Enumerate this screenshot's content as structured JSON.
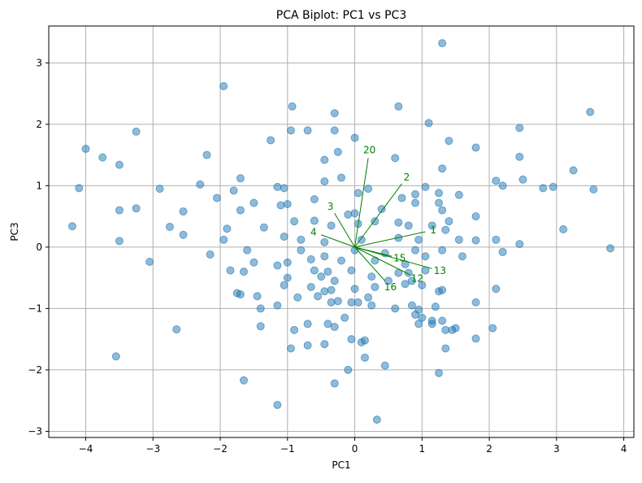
{
  "chart_data": {
    "type": "scatter",
    "title": "PCA Biplot: PC1 vs PC3",
    "xlabel": "PC1",
    "ylabel": "PC3",
    "xlim": [
      -4.55,
      4.15
    ],
    "ylim": [
      -3.1,
      3.6
    ],
    "xticks": [
      -4,
      -3,
      -2,
      -1,
      0,
      1,
      2,
      3,
      4
    ],
    "yticks": [
      -3,
      -2,
      -1,
      0,
      1,
      2,
      3
    ],
    "grid": true,
    "colors": {
      "points": "#1f77b4",
      "loadings": "#008000"
    },
    "points": [
      [
        1.3,
        3.32
      ],
      [
        -1.95,
        2.62
      ],
      [
        -0.93,
        2.29
      ],
      [
        0.65,
        2.29
      ],
      [
        3.5,
        2.2
      ],
      [
        -0.3,
        2.18
      ],
      [
        1.1,
        2.02
      ],
      [
        -0.95,
        1.9
      ],
      [
        -0.3,
        1.9
      ],
      [
        -0.7,
        1.9
      ],
      [
        -3.25,
        1.88
      ],
      [
        2.45,
        1.94
      ],
      [
        0.0,
        1.78
      ],
      [
        -1.25,
        1.74
      ],
      [
        1.4,
        1.73
      ],
      [
        -4.0,
        1.6
      ],
      [
        1.8,
        1.62
      ],
      [
        -3.75,
        1.46
      ],
      [
        -2.2,
        1.5
      ],
      [
        -0.25,
        1.55
      ],
      [
        -0.45,
        1.42
      ],
      [
        2.45,
        1.47
      ],
      [
        0.6,
        1.45
      ],
      [
        -3.5,
        1.34
      ],
      [
        1.3,
        1.28
      ],
      [
        3.25,
        1.25
      ],
      [
        -0.2,
        1.13
      ],
      [
        -1.7,
        1.12
      ],
      [
        -0.45,
        1.07
      ],
      [
        2.5,
        1.1
      ],
      [
        2.1,
        1.08
      ],
      [
        -4.1,
        0.96
      ],
      [
        -2.9,
        0.95
      ],
      [
        -2.3,
        1.02
      ],
      [
        1.05,
        0.98
      ],
      [
        2.2,
        1.0
      ],
      [
        2.95,
        0.98
      ],
      [
        2.8,
        0.96
      ],
      [
        3.55,
        0.94
      ],
      [
        -2.05,
        0.8
      ],
      [
        -1.8,
        0.92
      ],
      [
        0.2,
        0.95
      ],
      [
        0.9,
        0.86
      ],
      [
        1.25,
        0.88
      ],
      [
        1.55,
        0.85
      ],
      [
        0.05,
        0.88
      ],
      [
        0.7,
        0.8
      ],
      [
        -1.5,
        0.72
      ],
      [
        -1.1,
        0.68
      ],
      [
        -0.6,
        0.78
      ],
      [
        0.9,
        0.72
      ],
      [
        1.25,
        0.72
      ],
      [
        -1.15,
        0.98
      ],
      [
        -3.25,
        0.63
      ],
      [
        -3.5,
        0.6
      ],
      [
        -2.55,
        0.58
      ],
      [
        -1.7,
        0.6
      ],
      [
        -1.0,
        0.7
      ],
      [
        -1.05,
        0.96
      ],
      [
        0.4,
        0.62
      ],
      [
        1.3,
        0.6
      ],
      [
        -0.6,
        0.43
      ],
      [
        -0.35,
        0.35
      ],
      [
        -0.1,
        0.53
      ],
      [
        0.0,
        0.55
      ],
      [
        0.3,
        0.42
      ],
      [
        1.4,
        0.42
      ],
      [
        1.15,
        0.35
      ],
      [
        1.8,
        0.5
      ],
      [
        -2.75,
        0.33
      ],
      [
        -4.2,
        0.34
      ],
      [
        -1.9,
        0.3
      ],
      [
        -1.35,
        0.32
      ],
      [
        -0.9,
        0.42
      ],
      [
        0.05,
        0.38
      ],
      [
        0.65,
        0.4
      ],
      [
        0.8,
        0.35
      ],
      [
        1.35,
        0.28
      ],
      [
        3.1,
        0.29
      ],
      [
        -2.55,
        0.2
      ],
      [
        -1.95,
        0.12
      ],
      [
        -1.05,
        0.17
      ],
      [
        -0.8,
        0.12
      ],
      [
        -0.45,
        0.08
      ],
      [
        0.1,
        0.12
      ],
      [
        0.65,
        0.15
      ],
      [
        0.95,
        0.12
      ],
      [
        1.55,
        0.12
      ],
      [
        1.8,
        0.11
      ],
      [
        2.1,
        0.12
      ],
      [
        2.45,
        0.05
      ],
      [
        3.8,
        -0.02
      ],
      [
        -3.5,
        0.1
      ],
      [
        -2.15,
        -0.12
      ],
      [
        -1.6,
        -0.05
      ],
      [
        -0.8,
        -0.05
      ],
      [
        0.0,
        -0.05
      ],
      [
        0.45,
        -0.1
      ],
      [
        0.9,
        -0.05
      ],
      [
        1.3,
        -0.05
      ],
      [
        2.2,
        -0.08
      ],
      [
        -3.05,
        -0.24
      ],
      [
        -1.5,
        -0.25
      ],
      [
        -1.0,
        -0.25
      ],
      [
        -0.65,
        -0.2
      ],
      [
        -0.45,
        -0.15
      ],
      [
        -0.2,
        -0.22
      ],
      [
        0.3,
        -0.22
      ],
      [
        0.75,
        -0.28
      ],
      [
        1.05,
        -0.15
      ],
      [
        1.6,
        -0.15
      ],
      [
        -1.85,
        -0.38
      ],
      [
        -1.65,
        -0.4
      ],
      [
        -1.15,
        -0.3
      ],
      [
        -0.6,
        -0.38
      ],
      [
        -0.4,
        -0.4
      ],
      [
        -0.05,
        -0.38
      ],
      [
        0.25,
        -0.48
      ],
      [
        0.65,
        -0.42
      ],
      [
        0.8,
        -0.42
      ],
      [
        1.05,
        -0.38
      ],
      [
        -1.0,
        -0.5
      ],
      [
        -0.5,
        -0.48
      ],
      [
        -0.3,
        -0.55
      ],
      [
        0.5,
        -0.55
      ],
      [
        0.85,
        -0.55
      ],
      [
        -1.05,
        -0.62
      ],
      [
        -0.65,
        -0.65
      ],
      [
        -0.45,
        -0.72
      ],
      [
        -0.35,
        -0.7
      ],
      [
        0.0,
        -0.68
      ],
      [
        0.3,
        -0.65
      ],
      [
        0.75,
        -0.6
      ],
      [
        1.0,
        -0.62
      ],
      [
        1.3,
        -0.7
      ],
      [
        1.25,
        -0.72
      ],
      [
        -1.75,
        -0.75
      ],
      [
        -1.7,
        -0.77
      ],
      [
        -1.45,
        -0.8
      ],
      [
        -0.85,
        -0.82
      ],
      [
        -0.55,
        -0.8
      ],
      [
        -0.35,
        -0.9
      ],
      [
        -0.25,
        -0.88
      ],
      [
        0.05,
        -0.9
      ],
      [
        0.2,
        -0.82
      ],
      [
        0.25,
        -0.95
      ],
      [
        0.85,
        -0.95
      ],
      [
        0.95,
        -1.02
      ],
      [
        1.2,
        -0.97
      ],
      [
        1.8,
        -0.9
      ],
      [
        2.1,
        -0.68
      ],
      [
        -1.4,
        -1.0
      ],
      [
        -1.15,
        -0.95
      ],
      [
        -0.05,
        -0.9
      ],
      [
        0.6,
        -1.0
      ],
      [
        0.9,
        -1.1
      ],
      [
        0.95,
        -1.25
      ],
      [
        1.0,
        -1.15
      ],
      [
        -0.7,
        -1.25
      ],
      [
        -0.4,
        -1.25
      ],
      [
        -0.9,
        -1.35
      ],
      [
        -0.15,
        -1.15
      ],
      [
        -0.3,
        -1.3
      ],
      [
        1.15,
        -1.25
      ],
      [
        1.15,
        -1.2
      ],
      [
        1.3,
        -1.2
      ],
      [
        1.35,
        -1.35
      ],
      [
        1.45,
        -1.35
      ],
      [
        1.5,
        -1.32
      ],
      [
        2.05,
        -1.32
      ],
      [
        -1.4,
        -1.29
      ],
      [
        -2.65,
        -1.34
      ],
      [
        1.8,
        -1.49
      ],
      [
        0.1,
        -1.55
      ],
      [
        -0.05,
        -1.5
      ],
      [
        0.15,
        -1.52
      ],
      [
        -0.45,
        -1.58
      ],
      [
        -0.7,
        -1.6
      ],
      [
        -0.95,
        -1.65
      ],
      [
        1.35,
        -1.65
      ],
      [
        -3.55,
        -1.78
      ],
      [
        0.15,
        -1.8
      ],
      [
        0.45,
        -1.93
      ],
      [
        -0.1,
        -2.0
      ],
      [
        1.25,
        -2.05
      ],
      [
        -1.65,
        -2.17
      ],
      [
        -0.3,
        -2.22
      ],
      [
        -1.15,
        -2.57
      ],
      [
        0.33,
        -2.81
      ]
    ],
    "loadings": [
      {
        "label": "1",
        "x": 1.05,
        "y": 0.25
      },
      {
        "label": "2",
        "x": 0.7,
        "y": 1.03
      },
      {
        "label": "3",
        "x": -0.3,
        "y": 0.55
      },
      {
        "label": "4",
        "x": -0.5,
        "y": 0.2
      },
      {
        "label": "12",
        "x": 0.82,
        "y": -0.45
      },
      {
        "label": "13",
        "x": 1.15,
        "y": -0.35
      },
      {
        "label": "15",
        "x": 0.55,
        "y": -0.15
      },
      {
        "label": "16",
        "x": 0.45,
        "y": -0.55
      },
      {
        "label": "20",
        "x": 0.2,
        "y": 1.45
      }
    ]
  }
}
